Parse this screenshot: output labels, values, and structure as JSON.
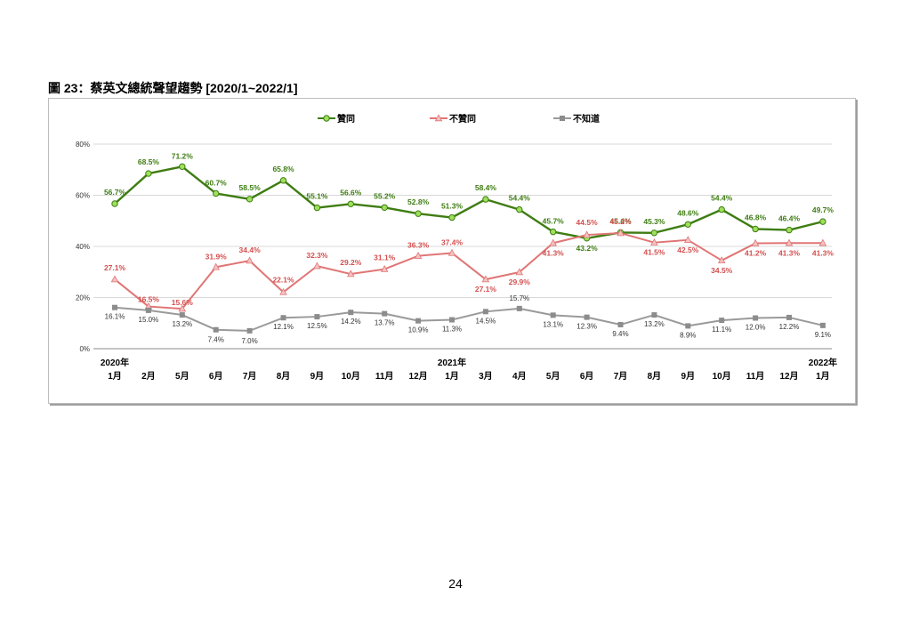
{
  "page": {
    "figure_title": "圖 23：蔡英文總統聲望趨勢 [2020/1~2022/1]",
    "page_number": "24"
  },
  "chart_data": {
    "type": "line",
    "title": "",
    "xlabel": "",
    "ylabel": "",
    "categories": [
      {
        "line1": "2020年",
        "line2": "1月"
      },
      {
        "line1": "",
        "line2": "2月"
      },
      {
        "line1": "",
        "line2": "5月"
      },
      {
        "line1": "",
        "line2": "6月"
      },
      {
        "line1": "",
        "line2": "7月"
      },
      {
        "line1": "",
        "line2": "8月"
      },
      {
        "line1": "",
        "line2": "9月"
      },
      {
        "line1": "",
        "line2": "10月"
      },
      {
        "line1": "",
        "line2": "11月"
      },
      {
        "line1": "",
        "line2": "12月"
      },
      {
        "line1": "2021年",
        "line2": "1月"
      },
      {
        "line1": "",
        "line2": "3月"
      },
      {
        "line1": "",
        "line2": "4月"
      },
      {
        "line1": "",
        "line2": "5月"
      },
      {
        "line1": "",
        "line2": "6月"
      },
      {
        "line1": "",
        "line2": "7月"
      },
      {
        "line1": "",
        "line2": "8月"
      },
      {
        "line1": "",
        "line2": "9月"
      },
      {
        "line1": "",
        "line2": "10月"
      },
      {
        "line1": "",
        "line2": "11月"
      },
      {
        "line1": "",
        "line2": "12月"
      },
      {
        "line1": "2022年",
        "line2": "1月"
      }
    ],
    "yticks": [
      "0%",
      "20%",
      "40%",
      "60%",
      "80%"
    ],
    "ylim": [
      0,
      80
    ],
    "grid": true,
    "legend_position": "top",
    "series": [
      {
        "name": "贊同",
        "color": "#3e7d12",
        "marker": "circle",
        "marker_fill": "#9ee05a",
        "values": [
          56.7,
          68.5,
          71.2,
          60.7,
          58.5,
          65.8,
          55.1,
          56.6,
          55.2,
          52.8,
          51.3,
          58.4,
          54.4,
          45.7,
          43.2,
          45.4,
          45.3,
          48.6,
          54.4,
          46.8,
          46.4,
          49.7
        ],
        "labels": [
          "56.7%",
          "68.5%",
          "71.2%",
          "60.7%",
          "58.5%",
          "65.8%",
          "55.1%",
          "56.6%",
          "55.2%",
          "52.8%",
          "51.3%",
          "58.4%",
          "54.4%",
          "45.7%",
          "43.2%",
          "45.4%",
          "45.3%",
          "48.6%",
          "54.4%",
          "46.8%",
          "46.4%",
          "49.7%"
        ]
      },
      {
        "name": "不贊同",
        "color": "#e07575",
        "marker": "triangle",
        "marker_fill": "#f5c2c2",
        "label_color": "#d44f4f",
        "values": [
          27.1,
          16.5,
          15.6,
          31.9,
          34.4,
          22.1,
          32.3,
          29.2,
          31.1,
          36.3,
          37.4,
          27.1,
          29.9,
          41.3,
          44.5,
          45.2,
          41.5,
          42.5,
          34.5,
          41.2,
          41.3,
          41.3
        ],
        "labels": [
          "27.1%",
          "16.5%",
          "15.6%",
          "31.9%",
          "34.4%",
          "22.1%",
          "32.3%",
          "29.2%",
          "31.1%",
          "36.3%",
          "37.4%",
          "27.1%",
          "29.9%",
          "41.3%",
          "44.5%",
          "45.2%",
          "41.5%",
          "42.5%",
          "34.5%",
          "41.2%",
          "41.3%",
          "41.3%"
        ]
      },
      {
        "name": "不知道",
        "color": "#9a9a9a",
        "marker": "square",
        "marker_fill": "#8c8c8c",
        "label_color": "#333333",
        "values": [
          16.1,
          15.0,
          13.2,
          7.4,
          7.0,
          12.1,
          12.5,
          14.2,
          13.7,
          10.9,
          11.3,
          14.5,
          15.7,
          13.1,
          12.3,
          9.4,
          13.2,
          8.9,
          11.1,
          12.0,
          12.2,
          9.1
        ],
        "labels": [
          "16.1%",
          "15.0%",
          "13.2%",
          "7.4%",
          "7.0%",
          "12.1%",
          "12.5%",
          "14.2%",
          "13.7%",
          "10.9%",
          "11.3%",
          "14.5%",
          "15.7%",
          "13.1%",
          "12.3%",
          "9.4%",
          "13.2%",
          "8.9%",
          "11.1%",
          "12.0%",
          "12.2%",
          "9.1%"
        ]
      }
    ]
  }
}
